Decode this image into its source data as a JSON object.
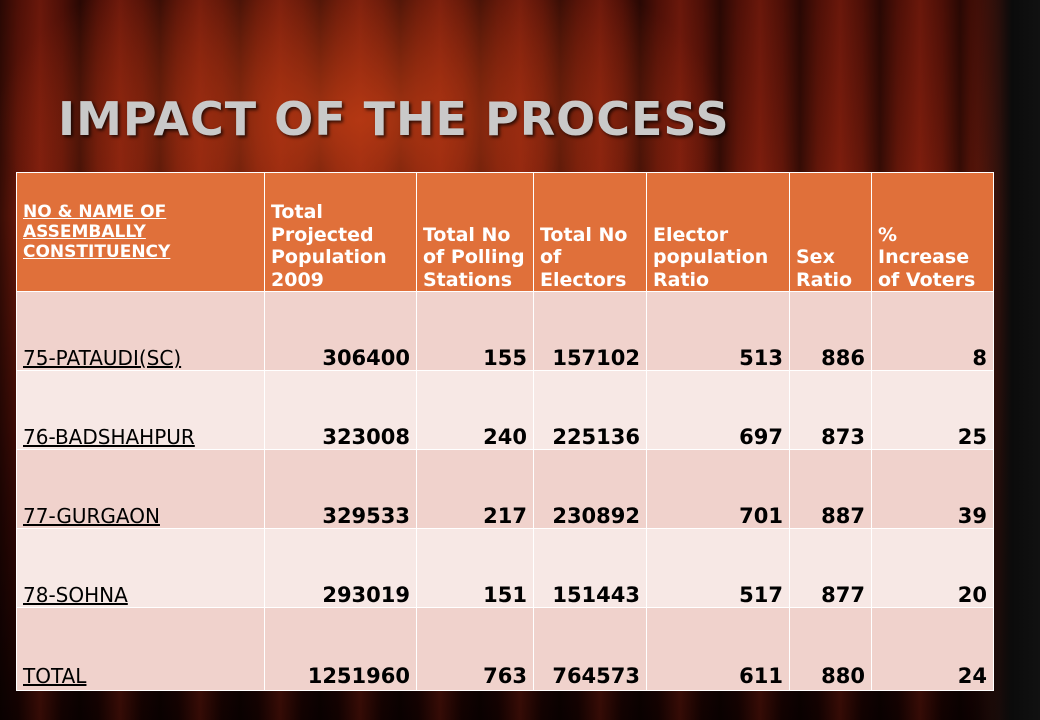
{
  "slide": {
    "title": "IMPACT OF THE PROCESS"
  },
  "table": {
    "headers": [
      "NO & NAME OF ASSEMBALLY CONSTITUENCY",
      "Total Projected Population 2009",
      "Total No of Polling Stations",
      "Total No of Electors",
      "Elector population Ratio",
      "Sex Ratio",
      "% Increase of Voters"
    ],
    "rows": [
      {
        "name": "75-PATAUDI(SC)",
        "population": "306400",
        "stations": "155",
        "electors": "157102",
        "ratio": "513",
        "sex_ratio": "886",
        "increase": "8"
      },
      {
        "name": "76-BADSHAHPUR",
        "population": "323008",
        "stations": "240",
        "electors": "225136",
        "ratio": "697",
        "sex_ratio": "873",
        "increase": "25"
      },
      {
        "name": "77-GURGAON",
        "population": "329533",
        "stations": "217",
        "electors": "230892",
        "ratio": "701",
        "sex_ratio": "887",
        "increase": "39"
      },
      {
        "name": "78-SOHNA",
        "population": "293019",
        "stations": "151",
        "electors": "151443",
        "ratio": "517",
        "sex_ratio": "877",
        "increase": "20"
      },
      {
        "name": "TOTAL",
        "population": "1251960",
        "stations": "763",
        "electors": "764573",
        "ratio": "611",
        "sex_ratio": "880",
        "increase": "24"
      }
    ]
  },
  "colors": {
    "header_bg": "#e0703a",
    "row_odd_bg": "#f0d2cc",
    "row_even_bg": "#f7e8e5",
    "title_color": "#c9c9c9"
  }
}
